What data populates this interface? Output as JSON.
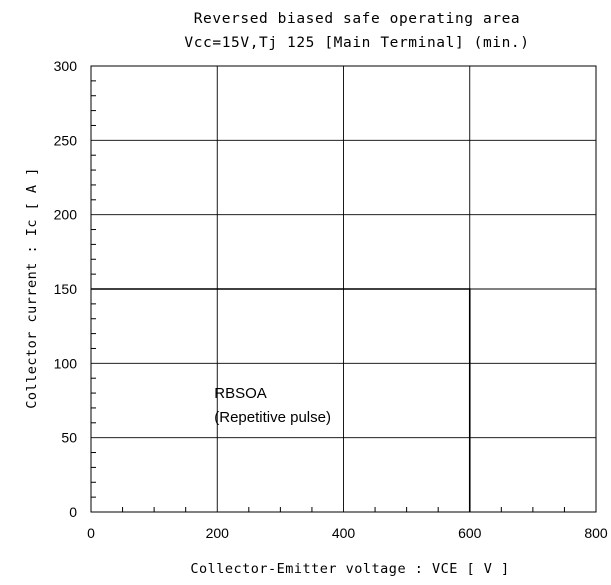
{
  "chart_data": {
    "type": "line",
    "title": "Reversed biased safe operating area",
    "subtitle": "Vcc=15V,Tj  125  [Main Terminal] (min.)",
    "xlabel": "Collector-Emitter voltage : VCE [ V ]",
    "ylabel": "Collector current : Ic [ A ]",
    "xlim": [
      0,
      800
    ],
    "ylim": [
      0,
      300
    ],
    "x_ticks": [
      0,
      200,
      400,
      600,
      800
    ],
    "y_ticks": [
      0,
      50,
      100,
      150,
      200,
      250,
      300
    ],
    "grid": true,
    "series": [
      {
        "x": [
          0,
          600,
          600
        ],
        "y": [
          150,
          150,
          0
        ],
        "color": "#000000"
      }
    ],
    "annotation": {
      "line1": "RBSOA",
      "line2": "(Repetitive pulse)",
      "x": 200,
      "y": 80
    }
  }
}
